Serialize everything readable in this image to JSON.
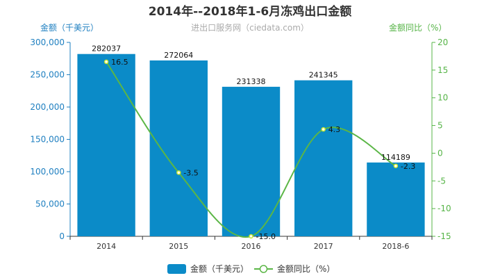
{
  "chart_data": {
    "type": "bar",
    "title": "2014年--2018年1-6月冻鸡出口金额",
    "subtitle": "进出口服务网（ciedata.com）",
    "categories": [
      "2014",
      "2015",
      "2016",
      "2017",
      "2018-6"
    ],
    "series": [
      {
        "name": "金额（千美元）",
        "type": "bar",
        "axis": "left",
        "color": "#0b8bc8",
        "values": [
          282037,
          272064,
          231338,
          241345,
          114189
        ],
        "labels": [
          "282037",
          "272064",
          "231338",
          "241345",
          "114189"
        ]
      },
      {
        "name": "金额同比（%）",
        "type": "line",
        "axis": "right",
        "color": "#5bb646",
        "values": [
          16.5,
          -3.5,
          -15.0,
          4.3,
          -2.3
        ],
        "labels": [
          "16.5",
          "-3.5",
          "-15.0",
          "4.3",
          "-2.3"
        ]
      }
    ],
    "ylabel": "金额（千美元）",
    "ylim": [
      0,
      300000
    ],
    "yticks": [
      0,
      50000,
      100000,
      150000,
      200000,
      250000,
      300000
    ],
    "ytick_labels": [
      "0",
      "50,000",
      "100,000",
      "150,000",
      "200,000",
      "250,000",
      "300,000"
    ],
    "y2label": "金额同比（%）",
    "y2lim": [
      -15,
      20
    ],
    "y2ticks": [
      -15,
      -10,
      -5,
      0,
      5,
      10,
      15,
      20
    ],
    "y2tick_labels": [
      "-15",
      "-10",
      "-5",
      "0",
      "5",
      "10",
      "15",
      "20"
    ],
    "grid": false,
    "legend_position": "bottom-center"
  }
}
